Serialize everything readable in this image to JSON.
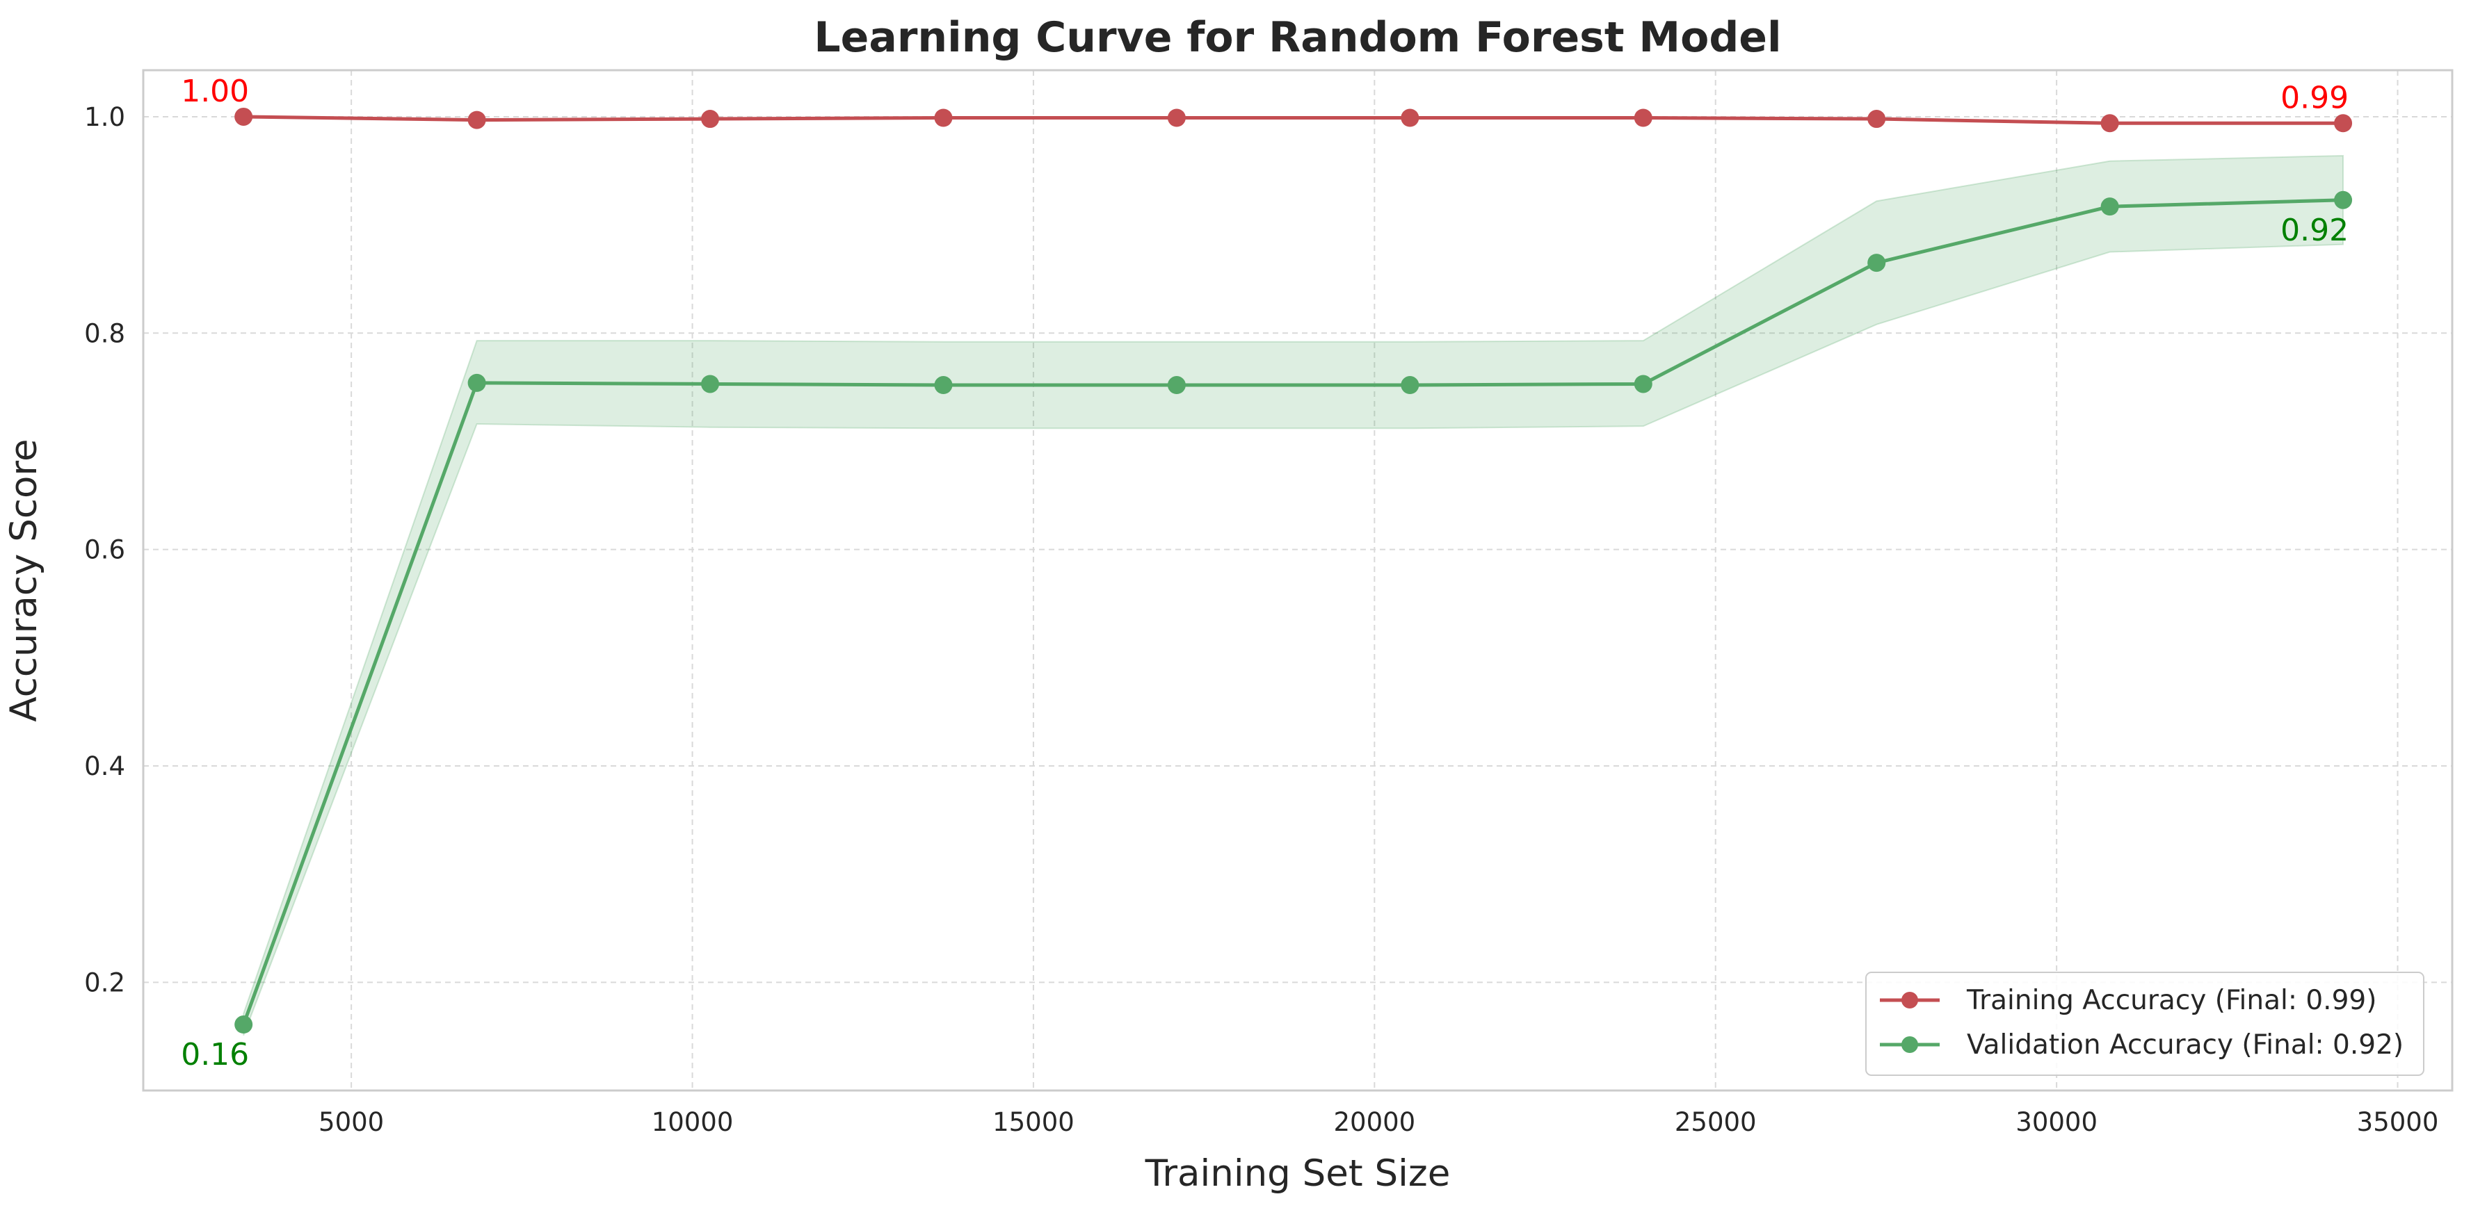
{
  "chart_data": {
    "type": "line",
    "title": "Learning Curve for Random Forest Model",
    "xlabel": "Training Set Size",
    "ylabel": "Accuracy Score",
    "xlim": [
      1950,
      35800
    ],
    "ylim": [
      0.1,
      1.043
    ],
    "xticks": [
      5000,
      10000,
      15000,
      20000,
      25000,
      30000,
      35000
    ],
    "yticks": [
      0.2,
      0.4,
      0.6,
      0.8,
      1.0
    ],
    "grid": true,
    "legend_position": "bottom-right",
    "x": [
      3420,
      6840,
      10260,
      13680,
      17100,
      20520,
      23940,
      27360,
      30780,
      34200
    ],
    "series": [
      {
        "name": "Training Accuracy (Final: 0.99)",
        "color": "#c44e52",
        "values": [
          1.0,
          0.997,
          0.998,
          0.999,
          0.999,
          0.999,
          0.999,
          0.998,
          0.994,
          0.994
        ],
        "band_lower": [
          1.0,
          0.997,
          0.998,
          0.999,
          0.999,
          0.999,
          0.999,
          0.998,
          0.994,
          0.994
        ],
        "band_upper": [
          1.0,
          0.997,
          0.998,
          0.999,
          0.999,
          0.999,
          0.999,
          0.998,
          0.994,
          0.994
        ]
      },
      {
        "name": "Validation Accuracy (Final: 0.92)",
        "color": "#55a868",
        "values": [
          0.161,
          0.754,
          0.753,
          0.752,
          0.752,
          0.752,
          0.753,
          0.865,
          0.917,
          0.923
        ],
        "band_lower": [
          0.151,
          0.716,
          0.713,
          0.712,
          0.712,
          0.712,
          0.714,
          0.808,
          0.875,
          0.882
        ],
        "band_upper": [
          0.171,
          0.793,
          0.793,
          0.792,
          0.792,
          0.792,
          0.793,
          0.922,
          0.959,
          0.964
        ]
      }
    ],
    "annotations": [
      {
        "text": "1.00",
        "x": 3420,
        "y": 1.0,
        "color": "#ff0000",
        "placement": "above-left"
      },
      {
        "text": "0.99",
        "x": 34200,
        "y": 0.994,
        "color": "#ff0000",
        "placement": "above-left"
      },
      {
        "text": "0.16",
        "x": 3420,
        "y": 0.161,
        "color": "#008000",
        "placement": "below-left"
      },
      {
        "text": "0.92",
        "x": 34200,
        "y": 0.923,
        "color": "#008000",
        "placement": "below-left"
      }
    ]
  }
}
